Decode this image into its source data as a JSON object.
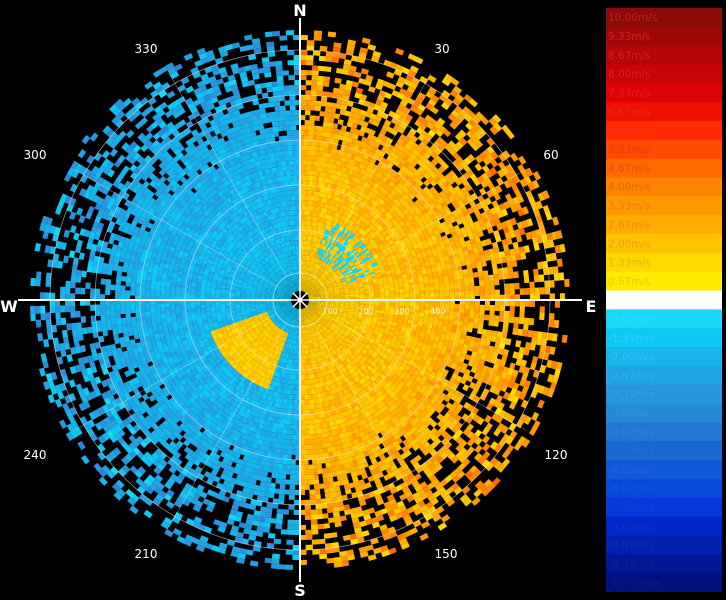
{
  "chart_data": {
    "type": "heatmap",
    "subtype": "polar-ppi-radial-velocity",
    "directions": {
      "north": "N",
      "east": "E",
      "south": "S",
      "west": "W"
    },
    "azimuth_labels": [
      "30",
      "60",
      "120",
      "150",
      "210",
      "240",
      "300",
      "330"
    ],
    "range_labels": [
      "100",
      "200",
      "300",
      "400"
    ],
    "sector_velocity_estimates": [
      {
        "azimuth_range": [
          0,
          180
        ],
        "velocity_range": [
          1.33,
          3.33
        ],
        "color_band": "yellow-orange"
      },
      {
        "azimuth_range": [
          180,
          360
        ],
        "velocity_range": [
          -2.67,
          -1.33
        ],
        "color_band": "light-blue"
      }
    ],
    "colorbar": {
      "unit": "m/s",
      "labels": [
        "10.00m/s",
        "9.33m/s",
        "8.67m/s",
        "8.00m/s",
        "7.33m/s",
        "6.67m/s",
        "6.00m/s",
        "5.33m/s",
        "4.67m/s",
        "4.00m/s",
        "3.33m/s",
        "2.67m/s",
        "2.00m/s",
        "1.33m/s",
        "0.67m/s",
        "0.00m/s",
        "-0.67m/s",
        "-1.33m/s",
        "-2.00m/s",
        "-2.67m/s",
        "-3.33m/s",
        "-4.00m/s",
        "-4.67m/s",
        "-5.33m/s",
        "-6.00m/s",
        "-6.67m/s",
        "-7.33m/s",
        "-8.00m/s",
        "-8.67m/s",
        "-9.33m/s",
        "-10.00m/s"
      ],
      "colors": [
        "#8c0a0a",
        "#a00808",
        "#b40606",
        "#c80404",
        "#dc0404",
        "#f01000",
        "#ff2a00",
        "#ff4a00",
        "#ff6a00",
        "#ff8200",
        "#ff9800",
        "#ffae00",
        "#ffc400",
        "#ffd800",
        "#ffea00",
        "#ffffff",
        "#18d8f8",
        "#10c8f4",
        "#18b4ec",
        "#20a4e4",
        "#2894dc",
        "#2888d8",
        "#2078d4",
        "#1868d4",
        "#1058d8",
        "#0848dc",
        "#0438d8",
        "#0028c8",
        "#0020b0",
        "#001898",
        "#001080"
      ],
      "label_colors": [
        "#c02020",
        "#c82020",
        "#d02020",
        "#d82020",
        "#e02020",
        "#e02818",
        "#e83018",
        "#f03810",
        "#f04810",
        "#f06010",
        "#f07810",
        "#f08a10",
        "#f09c10",
        "#f0b010",
        "#f0c800",
        "#ffffff",
        "#30d8f8",
        "#30d0f8",
        "#30c0f0",
        "#30b0f0",
        "#30a0e8",
        "#2890e0",
        "#2880e0",
        "#2070e0",
        "#2060e0",
        "#1850e0",
        "#1040d8",
        "#1030c8",
        "#1028b0",
        "#102098",
        "#101880"
      ]
    }
  }
}
